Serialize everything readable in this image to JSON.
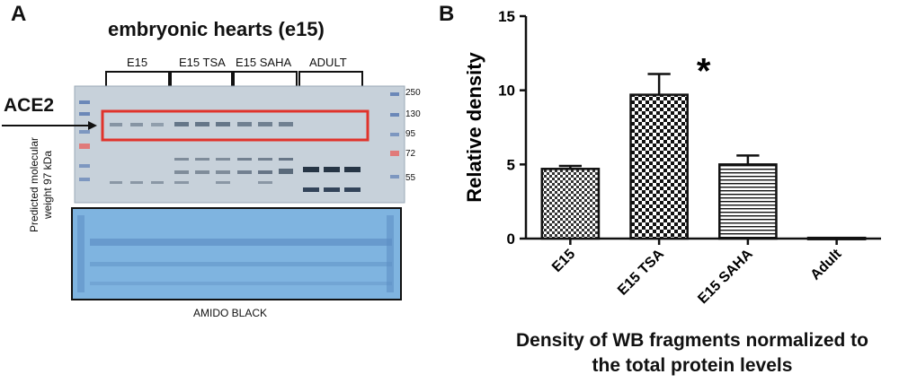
{
  "panel_a": {
    "letter": "A",
    "title": "embryonic hearts (e15)",
    "groups": [
      "E15",
      "E15 TSA",
      "E15 SAHA",
      "ADULT"
    ],
    "mw_markers": [
      "250",
      "130",
      "95",
      "72",
      "55"
    ],
    "arrow_label": "ACE2",
    "side_label_line1": "Predicted molecular",
    "side_label_line2": "weight 97 kDa",
    "bottom_label": "AMIDO BLACK"
  },
  "panel_b": {
    "letter": "B",
    "caption_line1": "Density of WB fragments normalized to",
    "caption_line2": "the total protein levels"
  },
  "colors": {
    "blot_bg": "#c9d3dc",
    "amido_bg": "#7fb4e0",
    "highlight_box": "#e0332b",
    "bar_edge": "#111111"
  },
  "chart_data": {
    "type": "bar",
    "categories": [
      "E15",
      "E15 TSA",
      "E15 SAHA",
      "Adult"
    ],
    "values": [
      4.7,
      9.7,
      5.0,
      0.05
    ],
    "errors": [
      0.2,
      1.4,
      0.6,
      0
    ],
    "patterns": [
      "fine-checker",
      "checker",
      "horizontal-stripes",
      "solid-light"
    ],
    "ylabel": "Relative density",
    "xlabel": "",
    "ylim": [
      0,
      15
    ],
    "yticks": [
      0,
      5,
      10,
      15
    ],
    "annotation": "*",
    "annotation_category": "E15 TSA",
    "grid": false
  }
}
